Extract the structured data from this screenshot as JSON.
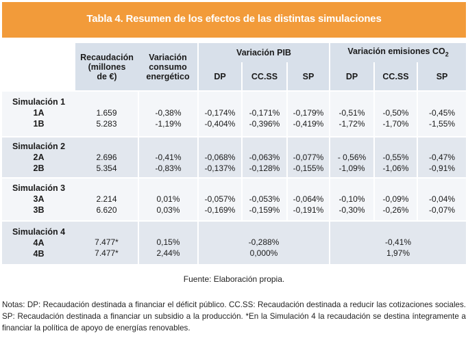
{
  "title": "Tabla 4. Resumen de los efectos de las distintas simulaciones",
  "headers": {
    "recaudacion": [
      "Recaudación",
      "(millones",
      "de €)"
    ],
    "consumo": [
      "Variación",
      "consumo",
      "energético"
    ],
    "pib_group": "Variación PIB",
    "emisiones_group": "Variación emisiones CO",
    "emisiones_sub": "2",
    "dp": "DP",
    "ccss": "CC.SS",
    "sp": "SP"
  },
  "blocks": [
    {
      "name": "Simulación 1",
      "rows": [
        {
          "label": "1A",
          "recaudacion": "1.659",
          "consumo": "-0,38%",
          "pib_dp": "-0,174%",
          "pib_ccss": "-0,171%",
          "pib_sp": "-0,179%",
          "em_dp": "-0,51%",
          "em_ccss": "-0,50%",
          "em_sp": "-0,45%"
        },
        {
          "label": "1B",
          "recaudacion": "5.283",
          "consumo": "-1,19%",
          "pib_dp": "-0,404%",
          "pib_ccss": "-0,396%",
          "pib_sp": "-0,419%",
          "em_dp": "-1,72%",
          "em_ccss": "-1,70%",
          "em_sp": "-1,55%"
        }
      ]
    },
    {
      "name": "Simulación 2",
      "rows": [
        {
          "label": "2A",
          "recaudacion": "2.696",
          "consumo": "-0,41%",
          "pib_dp": "-0,068%",
          "pib_ccss": "-0,063%",
          "pib_sp": "-0,077%",
          "em_dp": "- 0,56%",
          "em_ccss": "-0,55%",
          "em_sp": "-0,47%"
        },
        {
          "label": "2B",
          "recaudacion": "5.354",
          "consumo": "-0,83%",
          "pib_dp": "-0,137%",
          "pib_ccss": "-0,128%",
          "pib_sp": "-0,155%",
          "em_dp": "-1,09%",
          "em_ccss": "-1,06%",
          "em_sp": "-0,91%"
        }
      ]
    },
    {
      "name": "Simulación 3",
      "rows": [
        {
          "label": "3A",
          "recaudacion": "2.214",
          "consumo": "0,01%",
          "pib_dp": "-0,057%",
          "pib_ccss": "-0,053%",
          "pib_sp": "-0,064%",
          "em_dp": "-0,10%",
          "em_ccss": "-0,09%",
          "em_sp": "-0,04%"
        },
        {
          "label": "3B",
          "recaudacion": "6.620",
          "consumo": "0,03%",
          "pib_dp": "-0,169%",
          "pib_ccss": "-0,159%",
          "pib_sp": "-0,191%",
          "em_dp": "-0,30%",
          "em_ccss": "-0,26%",
          "em_sp": "-0,07%"
        }
      ]
    },
    {
      "name": "Simulación 4",
      "rows": [
        {
          "label": "4A",
          "recaudacion": "7.477*",
          "consumo": "0,15%",
          "pib_all": "-0,288%",
          "em_all": "-0,41%"
        },
        {
          "label": "4B",
          "recaudacion": "7.477*",
          "consumo": "2,44%",
          "pib_all": "0,000%",
          "em_all": "1,97%"
        }
      ]
    }
  ],
  "source": "Fuente: Elaboración propia.",
  "notes": "Notas: DP: Recaudación destinada a financiar el déficit público. CC.SS: Recaudación destinada a reducir las cotizaciones sociales. SP: Recaudación destinada a financiar un subsidio a la producción. *En la Simulación 4 la recaudación se destina íntegramente a financiar la política de apoyo de energías renovables."
}
